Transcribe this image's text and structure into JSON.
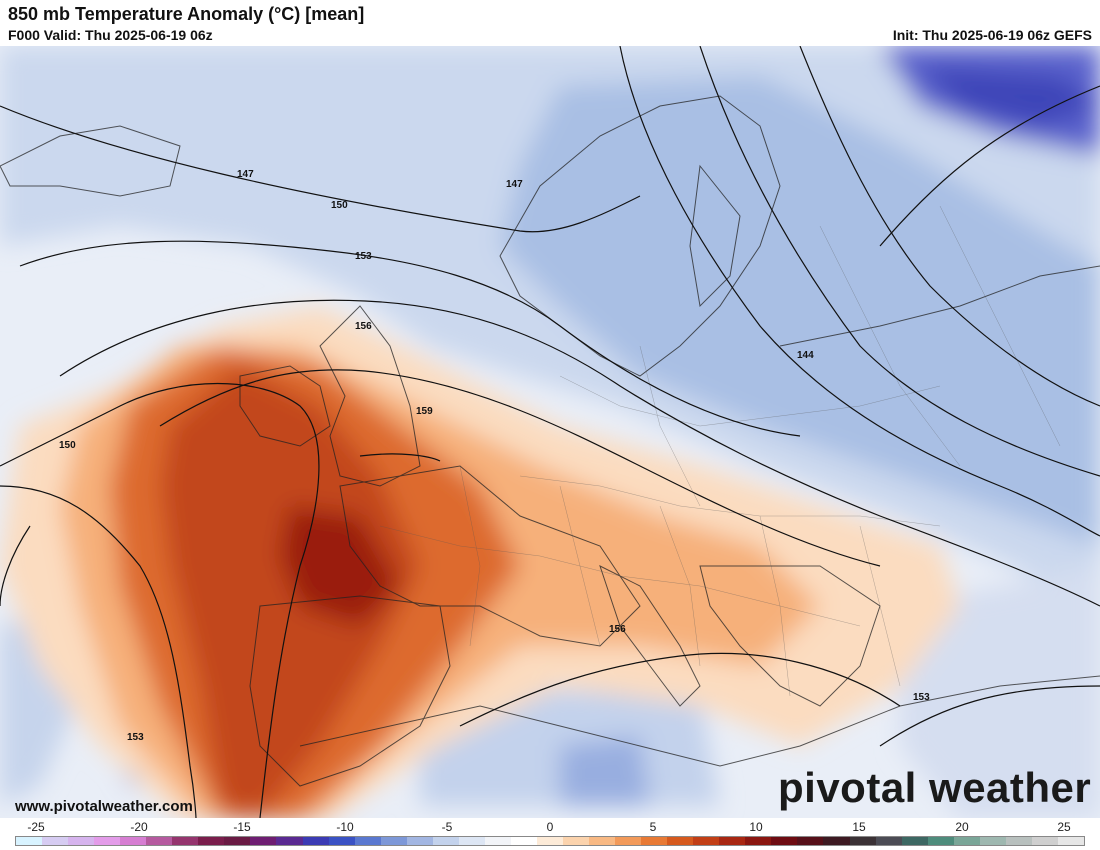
{
  "header": {
    "title": "850 mb Temperature Anomaly (°C) [mean]",
    "valid": "F000 Valid: Thu 2025-06-19 06z",
    "init": "Init: Thu 2025-06-19 06z GEFS"
  },
  "footer": {
    "website": "www.pivotalweather.com",
    "brand": "pivotal weather"
  },
  "contour_labels": [
    "147",
    "147",
    "150",
    "153",
    "156",
    "159",
    "150",
    "144",
    "156",
    "153",
    "153"
  ],
  "colorbar": {
    "tick_labels": [
      "-25",
      "-20",
      "-15",
      "-10",
      "-5",
      "0",
      "5",
      "10",
      "15",
      "20",
      "25"
    ],
    "colors": [
      "#d8f3ff",
      "#d6ccf2",
      "#d6b4ee",
      "#e39ce9",
      "#d67ed2",
      "#b55a9f",
      "#95356e",
      "#7a1e4c",
      "#6a1b44",
      "#6e1e72",
      "#5a2a92",
      "#3b3bb4",
      "#3a52c4",
      "#5a78d0",
      "#7d98d8",
      "#a2b6e2",
      "#c3d2ec",
      "#dde6f4",
      "#f2f4f8",
      "#ffffff",
      "#fdebd8",
      "#fbd3ad",
      "#f8b984",
      "#f29a5a",
      "#e87a35",
      "#d65a1e",
      "#c23f16",
      "#a82712",
      "#8a1610",
      "#6e0c12",
      "#561019",
      "#3d1a22",
      "#3b3236",
      "#4c4c55",
      "#3d6863",
      "#4e8c7c",
      "#7aa698",
      "#9eb8b0",
      "#b8c0be",
      "#cfcfcf",
      "#e6e6e6"
    ]
  },
  "map": {
    "colors": {
      "warm_deep": "#b8360f",
      "warm_core": "#9a1f0e",
      "warm_mid": "#dd6a2e",
      "warm_light": "#f6b07a",
      "warm_pale": "#fbdcc0",
      "cold_pale": "#dfe7f4",
      "cold_light": "#b9cbe7",
      "cold_mid": "#93aedc",
      "cold_deep": "#4a55c8"
    }
  }
}
